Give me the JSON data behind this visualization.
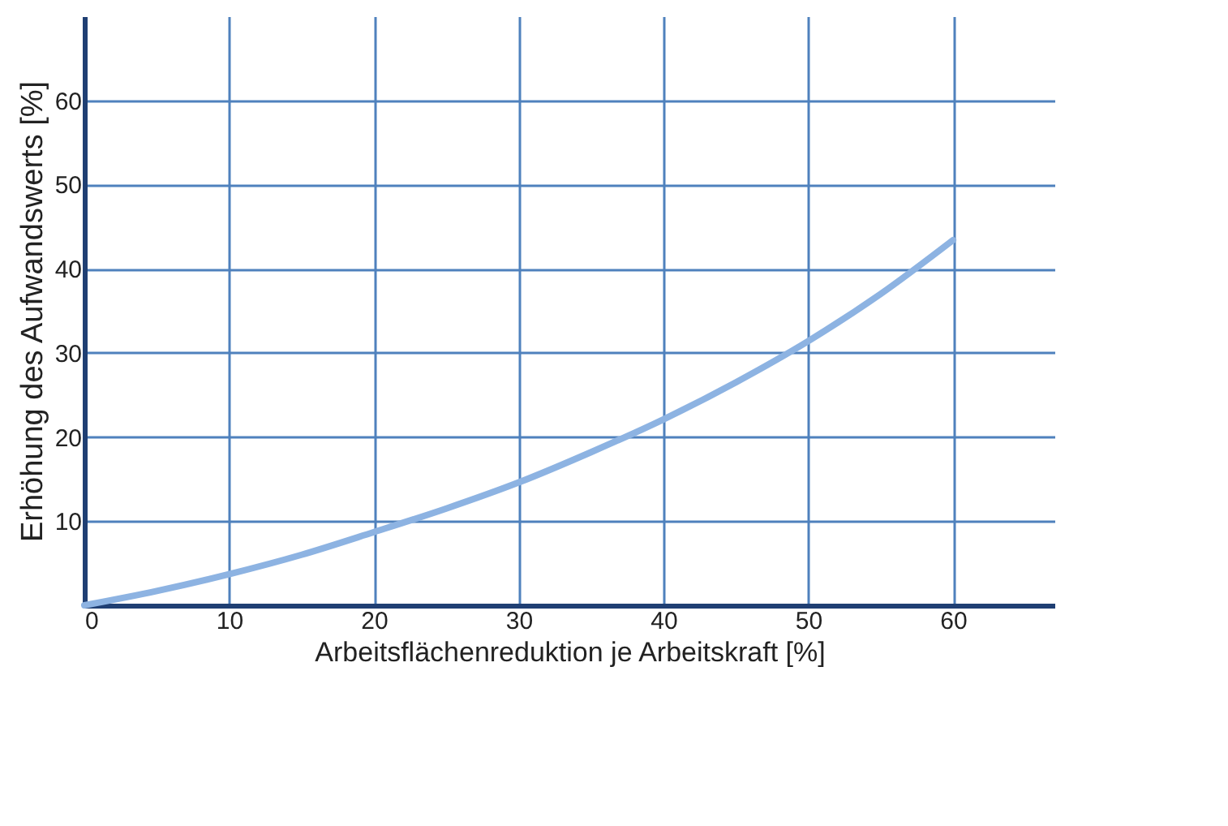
{
  "chart_data": {
    "type": "line",
    "xlabel": "Arbeitsflächenreduktion je Arbeitskraft [%]",
    "ylabel": "Erhöhung des Aufwandswerts [%]",
    "x": [
      0,
      5,
      10,
      15,
      20,
      25,
      30,
      35,
      40,
      45,
      50,
      55,
      60
    ],
    "series": [
      {
        "color": "#8db3e2",
        "values": [
          0,
          1.7,
          3.7,
          6.0,
          8.7,
          11.5,
          14.6,
          18.2,
          22.1,
          26.5,
          31.4,
          37.0,
          43.4
        ]
      }
    ],
    "xlim": [
      0,
      67
    ],
    "ylim": [
      0,
      70
    ],
    "xticks": [
      0,
      10,
      20,
      30,
      40,
      50,
      60
    ],
    "yticks": [
      {
        "value": 0,
        "label": null
      },
      10,
      20,
      30,
      40,
      50,
      60
    ],
    "grid": true,
    "marker": "none",
    "line_style": "solid"
  }
}
